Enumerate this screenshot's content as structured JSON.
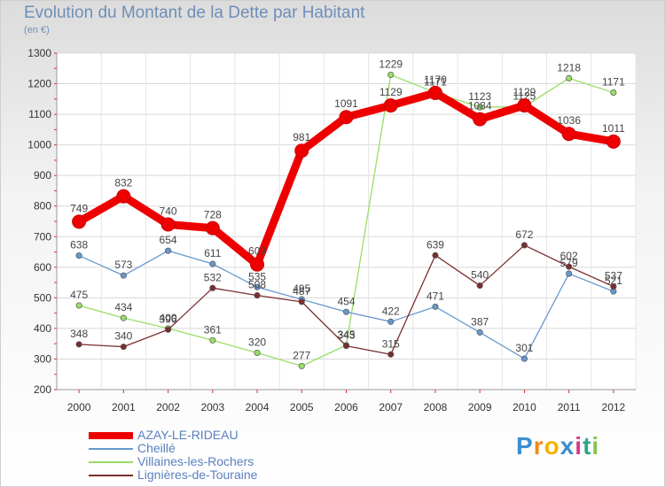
{
  "title": "Evolution du Montant de la Dette par Habitant",
  "subtitle": "(en €)",
  "brand": "Proxiti",
  "chart_data": {
    "type": "line",
    "x": [
      "2000",
      "2001",
      "2002",
      "2003",
      "2004",
      "2005",
      "2006",
      "2007",
      "2008",
      "2009",
      "2010",
      "2011",
      "2012"
    ],
    "ylim": [
      200,
      1300
    ],
    "yticks": [
      200,
      300,
      400,
      500,
      600,
      700,
      800,
      900,
      1000,
      1100,
      1200,
      1300
    ],
    "grid": true,
    "series": [
      {
        "name": "Villaines-les-Rochers",
        "color": "#99dd66",
        "values": [
          475,
          434,
          400,
          361,
          320,
          277,
          345,
          1229,
          1171,
          1123,
          1125,
          1218,
          1171
        ]
      },
      {
        "name": "Cheillé",
        "color": "#6699cc",
        "values": [
          638,
          573,
          654,
          611,
          535,
          495,
          454,
          422,
          471,
          387,
          301,
          579,
          521
        ]
      },
      {
        "name": "Lignières-de-Touraine",
        "color": "#7a2e2e",
        "values": [
          348,
          340,
          396,
          532,
          508,
          487,
          343,
          315,
          639,
          540,
          672,
          602,
          537
        ]
      },
      {
        "name": "AZAY-LE-RIDEAU",
        "color": "#ee0000",
        "values": [
          749,
          832,
          740,
          728,
          609,
          981,
          1091,
          1129,
          1170,
          1084,
          1129,
          1036,
          1011
        ]
      }
    ],
    "legend_order": [
      "AZAY-LE-RIDEAU",
      "Cheillé",
      "Villaines-les-Rochers",
      "Lignières-de-Touraine"
    ],
    "legend_position": "bottom-left"
  }
}
